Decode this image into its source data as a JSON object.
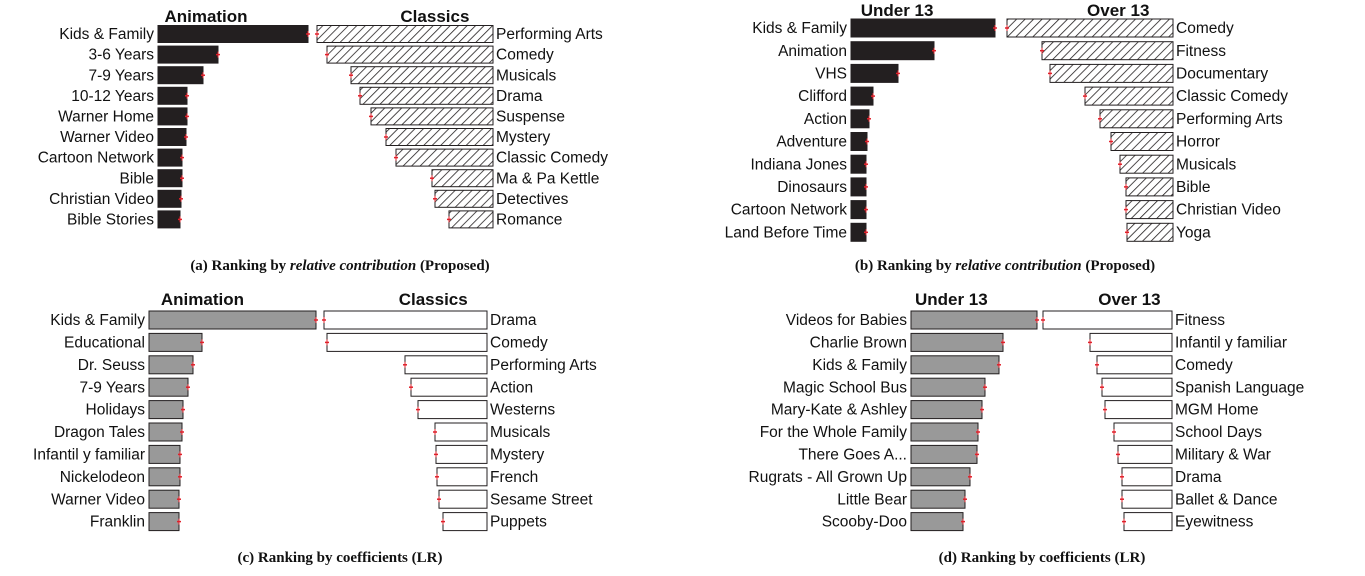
{
  "chart_data": [
    {
      "type": "bar",
      "caption": [
        "(a) Ranking by",
        "relative contribution",
        "(Proposed)"
      ],
      "series": [
        {
          "name": "Animation",
          "color": "#231f20",
          "fill_style": "solid",
          "categories": [
            "Kids & Family",
            "3-6 Years",
            "7-9 Years",
            "10-12 Years",
            "Warner Home",
            "Warner Video",
            "Cartoon Network",
            "Bible",
            "Christian Video",
            "Bible Stories"
          ],
          "values": [
            150,
            60,
            45,
            29,
            29,
            28,
            24,
            24,
            23,
            22
          ]
        },
        {
          "name": "Classics",
          "color": "#231f20",
          "fill_style": "hatched",
          "categories": [
            "Performing Arts",
            "Comedy",
            "Musicals",
            "Drama",
            "Suspense",
            "Mystery",
            "Classic Comedy",
            "Ma & Pa Kettle",
            "Detectives",
            "Romance"
          ],
          "values": [
            176,
            166,
            142,
            133,
            122,
            107,
            97,
            61,
            58,
            44
          ]
        }
      ]
    },
    {
      "type": "bar",
      "caption": [
        "(b) Ranking by",
        "relative contribution",
        "(Proposed)"
      ],
      "series": [
        {
          "name": "Under 13",
          "color": "#231f20",
          "fill_style": "solid",
          "categories": [
            "Kids & Family",
            "Animation",
            "VHS",
            "Clifford",
            "Action",
            "Adventure",
            "Indiana Jones",
            "Dinosaurs",
            "Cartoon Network",
            "Land Before Time"
          ],
          "values": [
            144,
            83,
            47,
            22,
            18,
            16,
            15,
            15,
            15,
            15
          ]
        },
        {
          "name": "Over 13",
          "color": "#231f20",
          "fill_style": "hatched",
          "categories": [
            "Comedy",
            "Fitness",
            "Documentary",
            "Classic Comedy",
            "Performing Arts",
            "Horror",
            "Musicals",
            "Bible",
            "Christian Video",
            "Yoga"
          ],
          "values": [
            166,
            131,
            123,
            88,
            73,
            62,
            53,
            47,
            47,
            46
          ]
        }
      ]
    },
    {
      "type": "bar",
      "caption": [
        "(c) Ranking by coefficients (LR)"
      ],
      "series": [
        {
          "name": "Animation",
          "color": "#999999",
          "fill_style": "solid",
          "categories": [
            "Kids & Family",
            "Educational",
            "Dr. Seuss",
            "7-9 Years",
            "Holidays",
            "Dragon Tales",
            "Infantil y familiar",
            "Nickelodeon",
            "Warner Video",
            "Franklin"
          ],
          "values": [
            167,
            53,
            44,
            39,
            34,
            33,
            31,
            31,
            30,
            30
          ]
        },
        {
          "name": "Classics",
          "color": "#ffffff",
          "fill_style": "solid",
          "categories": [
            "Drama",
            "Comedy",
            "Performing Arts",
            "Action",
            "Westerns",
            "Musicals",
            "Mystery",
            "French",
            "Sesame Street",
            "Puppets"
          ],
          "values": [
            163,
            160,
            82,
            76,
            69,
            52,
            51,
            50,
            48,
            44
          ]
        }
      ]
    },
    {
      "type": "bar",
      "caption": [
        "(d) Ranking by coefficients (LR)"
      ],
      "series": [
        {
          "name": "Under 13",
          "color": "#999999",
          "fill_style": "solid",
          "categories": [
            "Videos for Babies",
            "Charlie Brown",
            "Kids & Family",
            "Magic School Bus",
            "Mary-Kate & Ashley",
            "For the Whole Family",
            "There Goes A...",
            "Rugrats - All Grown Up",
            "Little Bear",
            "Scooby-Doo"
          ],
          "values": [
            126,
            92,
            88,
            74,
            71,
            67,
            66,
            59,
            54,
            52
          ]
        },
        {
          "name": "Over 13",
          "color": "#ffffff",
          "fill_style": "solid",
          "categories": [
            "Fitness",
            "Infantil y familiar",
            "Comedy",
            "Spanish Language",
            "MGM Home",
            "School Days",
            "Military & War",
            "Drama",
            "Ballet & Dance",
            "Eyewitness"
          ],
          "values": [
            129,
            82,
            75,
            70,
            67,
            58,
            54,
            50,
            50,
            48
          ]
        }
      ]
    }
  ]
}
